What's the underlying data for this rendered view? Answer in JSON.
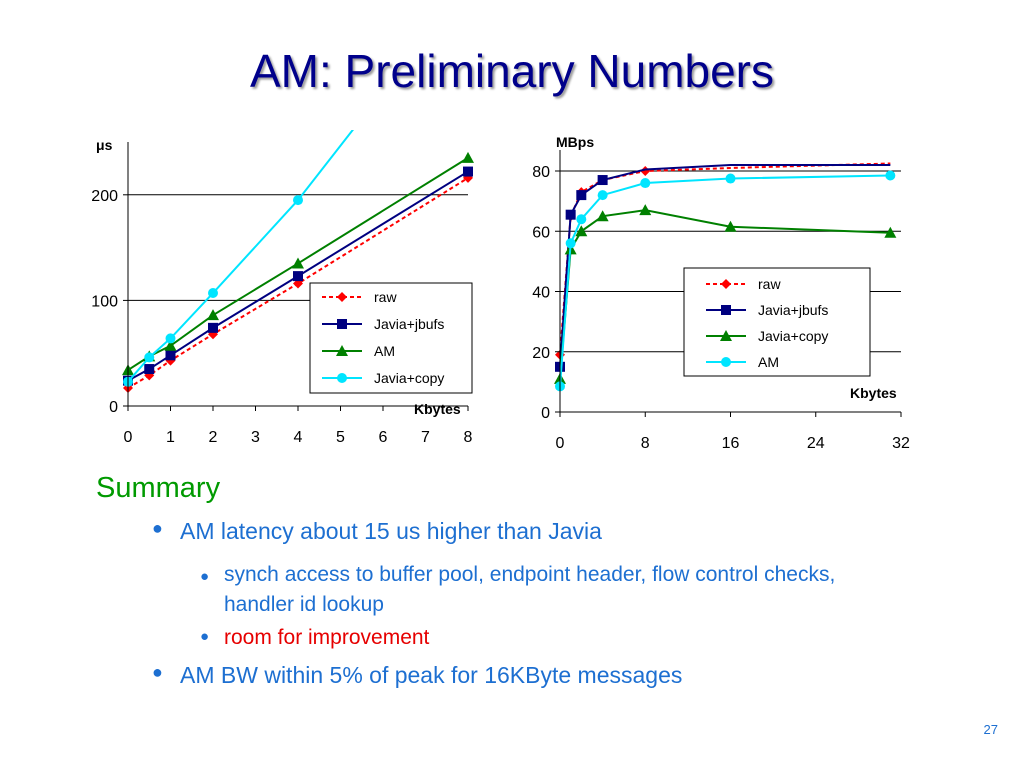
{
  "slide": {
    "title": "AM: Preliminary Numbers",
    "page_number": "27"
  },
  "summary": {
    "heading": "Summary",
    "bullets": [
      {
        "text": "AM latency about 15 us higher than Javia"
      },
      {
        "text": "synch access to buffer pool, endpoint header, flow control checks, handler id lookup"
      },
      {
        "text": "room for improvement"
      },
      {
        "text": "AM BW within 5% of peak for 16KByte messages"
      }
    ]
  },
  "colors": {
    "title": "#00008b",
    "summary_heading": "#009a00",
    "bullet_text": "#1d6fd1",
    "highlight": "#e60000",
    "raw": "#ff0000",
    "jbufs": "#000080",
    "am_green": "#008000",
    "cyan": "#00e5ff"
  },
  "chart_data": [
    {
      "type": "line",
      "ylabel": "μs",
      "xlabel": "Kbytes",
      "xlim": [
        0,
        8
      ],
      "ylim": [
        0,
        250
      ],
      "xticks": [
        "0",
        "1",
        "2",
        "3",
        "4",
        "5",
        "6",
        "7",
        "8"
      ],
      "yticks": [
        "0",
        "100",
        "200"
      ],
      "grid": "horizontal",
      "legend_position": "right",
      "series": [
        {
          "name": "raw",
          "color": "#ff0000",
          "dash": true,
          "marker": "diamond",
          "x": [
            0,
            0.5,
            1,
            2,
            4,
            8
          ],
          "y": [
            17,
            29,
            43,
            68,
            116,
            216
          ]
        },
        {
          "name": "Javia+jbufs",
          "color": "#000080",
          "dash": false,
          "marker": "square",
          "x": [
            0,
            0.5,
            1,
            2,
            4,
            8
          ],
          "y": [
            24,
            35,
            48,
            74,
            123,
            222
          ]
        },
        {
          "name": "AM",
          "color": "#008000",
          "dash": false,
          "marker": "triangle",
          "x": [
            0,
            0.5,
            1,
            2,
            4,
            8
          ],
          "y": [
            34,
            47,
            57,
            86,
            135,
            235
          ]
        },
        {
          "name": "Javia+copy",
          "color": "#00e5ff",
          "dash": false,
          "marker": "circle",
          "x": [
            0,
            0.5,
            1,
            2,
            4,
            5.3
          ],
          "y": [
            23,
            46,
            64,
            107,
            195,
            262
          ]
        }
      ]
    },
    {
      "type": "line",
      "ylabel": "MBps",
      "xlabel": "Kbytes",
      "xlim": [
        0,
        32
      ],
      "ylim": [
        0,
        80
      ],
      "xticks": [
        "0",
        "8",
        "16",
        "24",
        "32"
      ],
      "yticks": [
        "0",
        "20",
        "40",
        "60",
        "80"
      ],
      "grid": "horizontal",
      "legend_position": "center-right",
      "series": [
        {
          "name": "raw",
          "color": "#ff0000",
          "dash": true,
          "marker": "diamond",
          "x": [
            0,
            1,
            2,
            4,
            8,
            16,
            31
          ],
          "y": [
            19,
            65,
            73,
            77,
            80,
            81,
            82.5
          ]
        },
        {
          "name": "Javia+jbufs",
          "color": "#000080",
          "dash": false,
          "marker": "square",
          "x": [
            0,
            1,
            2,
            4,
            8,
            16,
            31
          ],
          "y": [
            15,
            65.5,
            72,
            77,
            80.5,
            82,
            82
          ]
        },
        {
          "name": "Javia+copy",
          "color": "#008000",
          "dash": false,
          "marker": "triangle",
          "x": [
            0,
            1,
            2,
            4,
            8,
            16,
            31
          ],
          "y": [
            11,
            54,
            60,
            65,
            67,
            61.5,
            59.5
          ]
        },
        {
          "name": "AM",
          "color": "#00e5ff",
          "dash": false,
          "marker": "circle",
          "x": [
            0,
            1,
            2,
            4,
            8,
            16,
            31
          ],
          "y": [
            8.5,
            56,
            64,
            72,
            76,
            77.5,
            78.5
          ]
        }
      ]
    }
  ]
}
